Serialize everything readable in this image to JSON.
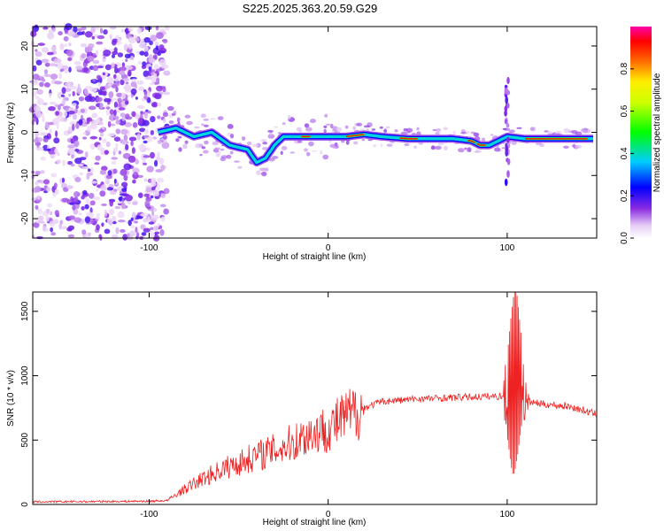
{
  "title": "S225.2025.363.20.59.G29",
  "chart_data": [
    {
      "type": "heatmap",
      "xlabel": "Height of straight line (km)",
      "ylabel": "Frequency (Hz)",
      "xlim": [
        -165,
        150
      ],
      "ylim": [
        -24.5,
        24.5
      ],
      "xticks": [
        "-100",
        "0",
        "100"
      ],
      "yticks": [
        "20",
        "10",
        "0",
        "-10",
        "-20"
      ],
      "colorbar": {
        "label": "Normalized spectral amplitude",
        "range": [
          0,
          1
        ],
        "ticks": [
          "0.0",
          "0.2",
          "0.4",
          "0.6",
          "0.8"
        ]
      },
      "ridge": {
        "x": [
          -95,
          -85,
          -75,
          -65,
          -55,
          -45,
          -40,
          -35,
          -30,
          -25,
          -20,
          -10,
          0,
          10,
          20,
          30,
          45,
          60,
          70,
          80,
          85,
          90,
          95,
          100,
          110,
          120,
          135,
          148
        ],
        "y": [
          0,
          1,
          -1,
          0,
          -3,
          -4,
          -7,
          -6,
          -3,
          -1,
          -1,
          -1,
          -1,
          -1,
          -0.5,
          -1,
          -1.5,
          -1.5,
          -1.5,
          -2,
          -3,
          -3,
          -2,
          -1,
          -1.5,
          -1.5,
          -1.5,
          -1.5
        ]
      }
    },
    {
      "type": "line",
      "xlabel": "Height of straight line (km)",
      "ylabel": "SNR (10 * v/v)",
      "xlim": [
        -165,
        150
      ],
      "ylim": [
        0,
        1650
      ],
      "xticks": [
        "-100",
        "0",
        "100"
      ],
      "yticks": [
        "0",
        "500",
        "1000",
        "1500"
      ],
      "color": "#ee2222",
      "envelope_x": [
        -165,
        -100,
        -90,
        -80,
        -70,
        -60,
        -50,
        -40,
        -30,
        -20,
        -10,
        0,
        10,
        20,
        30,
        50,
        70,
        90,
        100,
        103,
        105,
        108,
        110,
        120,
        135,
        150
      ],
      "envelope_y": [
        20,
        25,
        30,
        120,
        200,
        270,
        320,
        380,
        420,
        480,
        550,
        590,
        680,
        750,
        800,
        820,
        830,
        840,
        840,
        900,
        1000,
        950,
        800,
        780,
        760,
        700
      ]
    }
  ]
}
